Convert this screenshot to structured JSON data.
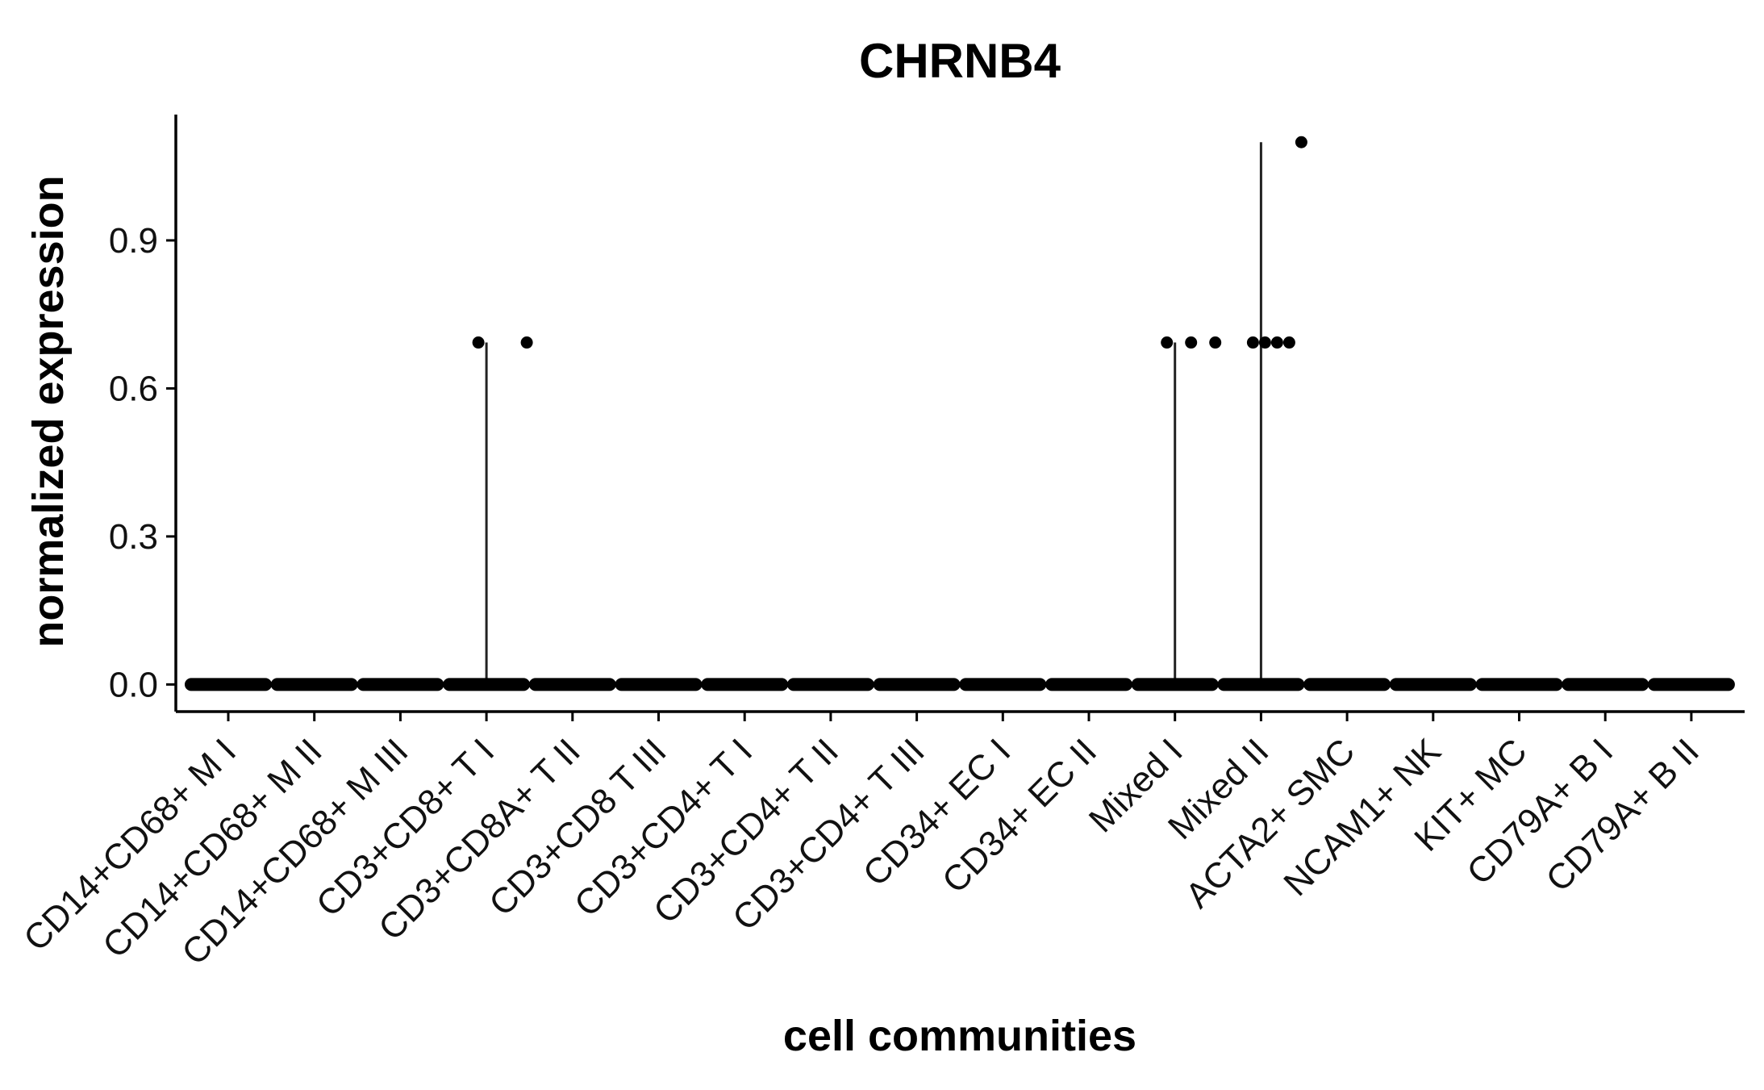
{
  "chart_data": {
    "type": "scatter",
    "title": "CHRNB4",
    "xlabel": "cell communities",
    "ylabel": "normalized expression",
    "ylim": [
      -0.055,
      1.155
    ],
    "yticks": [
      0.0,
      0.3,
      0.6,
      0.9
    ],
    "ytick_labels": [
      "0.0",
      "0.3",
      "0.6",
      "0.9"
    ],
    "grid": false,
    "legend": "none",
    "point_color": "#000000",
    "categories": [
      "CD14+CD68+ M I",
      "CD14+CD68+ M II",
      "CD14+CD68+ M III",
      "CD3+CD8+ T I",
      "CD3+CD8A+ T II",
      "CD3+CD8 T III",
      "CD3+CD4+ T I",
      "CD3+CD4+ T II",
      "CD3+CD4+ T III",
      "CD34+ EC I",
      "CD34+ EC II",
      "Mixed I",
      "Mixed II",
      "ACTA2+ SMC",
      "NCAM1+ NK",
      "KIT+ MC",
      "CD79A+ B I",
      "CD79A+ B II"
    ],
    "groups": [
      {
        "category": "CD14+CD68+ M I",
        "baseline": 0.0,
        "max": 0.0,
        "nonzero": []
      },
      {
        "category": "CD14+CD68+ M II",
        "baseline": 0.0,
        "max": 0.0,
        "nonzero": []
      },
      {
        "category": "CD14+CD68+ M III",
        "baseline": 0.0,
        "max": 0.0,
        "nonzero": []
      },
      {
        "category": "CD3+CD8+ T I",
        "baseline": 0.0,
        "max": 0.693,
        "nonzero": [
          0.693,
          0.693
        ]
      },
      {
        "category": "CD3+CD8A+ T II",
        "baseline": 0.0,
        "max": 0.0,
        "nonzero": []
      },
      {
        "category": "CD3+CD8 T III",
        "baseline": 0.0,
        "max": 0.0,
        "nonzero": []
      },
      {
        "category": "CD3+CD4+ T I",
        "baseline": 0.0,
        "max": 0.0,
        "nonzero": []
      },
      {
        "category": "CD3+CD4+ T II",
        "baseline": 0.0,
        "max": 0.0,
        "nonzero": []
      },
      {
        "category": "CD3+CD4+ T III",
        "baseline": 0.0,
        "max": 0.0,
        "nonzero": []
      },
      {
        "category": "CD34+ EC I",
        "baseline": 0.0,
        "max": 0.0,
        "nonzero": []
      },
      {
        "category": "CD34+ EC II",
        "baseline": 0.0,
        "max": 0.0,
        "nonzero": []
      },
      {
        "category": "Mixed I",
        "baseline": 0.0,
        "max": 0.693,
        "nonzero": [
          0.693,
          0.693,
          0.693
        ]
      },
      {
        "category": "Mixed II",
        "baseline": 0.0,
        "max": 1.099,
        "nonzero": [
          0.693,
          0.693,
          0.693,
          0.693,
          1.099
        ]
      },
      {
        "category": "ACTA2+ SMC",
        "baseline": 0.0,
        "max": 0.0,
        "nonzero": []
      },
      {
        "category": "NCAM1+ NK",
        "baseline": 0.0,
        "max": 0.0,
        "nonzero": []
      },
      {
        "category": "KIT+ MC",
        "baseline": 0.0,
        "max": 0.0,
        "nonzero": []
      },
      {
        "category": "CD79A+ B I",
        "baseline": 0.0,
        "max": 0.0,
        "nonzero": []
      },
      {
        "category": "CD79A+ B II",
        "baseline": 0.0,
        "max": 0.0,
        "nonzero": []
      }
    ]
  }
}
